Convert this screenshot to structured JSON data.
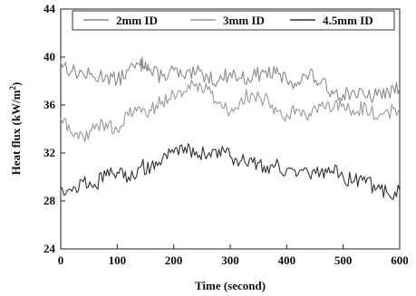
{
  "chart_data": {
    "type": "line",
    "title": "",
    "xlabel": "Time (second)",
    "ylabel_main": "Heat flux (kW/m",
    "ylabel_sup": "2",
    "ylabel_close": ")",
    "xlim": [
      0,
      600
    ],
    "ylim": [
      24,
      44
    ],
    "xticks": [
      0,
      100,
      200,
      300,
      400,
      500,
      600
    ],
    "yticks": [
      24,
      28,
      32,
      36,
      40,
      44
    ],
    "grid": false,
    "legend_position": "top",
    "series": [
      {
        "name": "2mm ID",
        "color": "#8a8a8a",
        "x": [
          0,
          20,
          40,
          60,
          80,
          100,
          120,
          140,
          150,
          160,
          180,
          200,
          220,
          240,
          260,
          280,
          300,
          320,
          340,
          360,
          380,
          400,
          420,
          440,
          460,
          480,
          500,
          520,
          540,
          560,
          580,
          600
        ],
        "values": [
          39.6,
          38.8,
          38.6,
          38.3,
          38.5,
          38.0,
          38.9,
          39.3,
          39.6,
          38.7,
          38.4,
          38.9,
          38.2,
          38.7,
          38.4,
          38.0,
          38.7,
          38.2,
          38.4,
          38.7,
          38.6,
          38.1,
          37.9,
          38.6,
          37.8,
          37.2,
          36.9,
          37.1,
          36.6,
          36.8,
          37.1,
          37.4
        ]
      },
      {
        "name": "3mm ID",
        "color": "#9a9a9a",
        "x": [
          0,
          20,
          40,
          60,
          80,
          100,
          120,
          140,
          160,
          180,
          200,
          220,
          240,
          260,
          280,
          300,
          320,
          340,
          360,
          380,
          400,
          420,
          440,
          460,
          480,
          500,
          520,
          540,
          560,
          580,
          600
        ],
        "values": [
          34.9,
          33.6,
          33.4,
          34.0,
          34.5,
          33.9,
          35.1,
          35.8,
          35.5,
          36.3,
          36.9,
          37.1,
          37.8,
          37.3,
          36.2,
          35.4,
          36.6,
          36.9,
          36.4,
          35.8,
          35.2,
          35.6,
          35.3,
          35.9,
          35.5,
          36.1,
          35.2,
          36.0,
          34.8,
          35.4,
          35.7
        ]
      },
      {
        "name": "4.5mm ID",
        "color": "#333333",
        "x": [
          0,
          20,
          40,
          60,
          80,
          100,
          120,
          140,
          160,
          180,
          200,
          220,
          240,
          260,
          280,
          300,
          320,
          340,
          360,
          380,
          400,
          420,
          440,
          460,
          480,
          500,
          520,
          540,
          560,
          580,
          600
        ],
        "values": [
          29.2,
          28.8,
          29.6,
          29.4,
          30.1,
          30.4,
          30.0,
          30.8,
          30.9,
          31.5,
          32.0,
          32.5,
          32.1,
          31.8,
          32.3,
          31.7,
          31.4,
          31.2,
          30.9,
          31.0,
          30.6,
          30.2,
          30.1,
          30.4,
          30.5,
          30.0,
          29.7,
          29.5,
          29.1,
          28.6,
          28.9
        ]
      }
    ]
  }
}
